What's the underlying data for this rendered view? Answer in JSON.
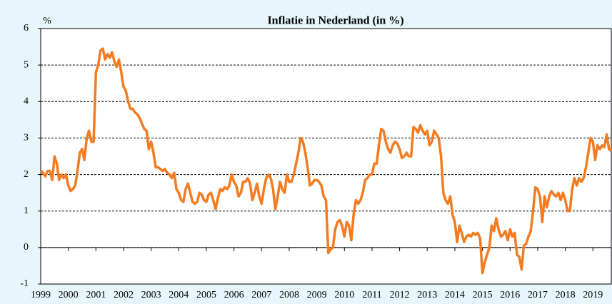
{
  "chart_data": {
    "type": "line",
    "title": "Inflatie in Nederland (in %)",
    "y_label": "%",
    "categories": [
      "1999",
      null,
      null,
      null,
      null,
      null,
      null,
      null,
      null,
      null,
      null,
      null,
      "2000",
      null,
      null,
      null,
      null,
      null,
      null,
      null,
      null,
      null,
      null,
      null,
      "2001",
      null,
      null,
      null,
      null,
      null,
      null,
      null,
      null,
      null,
      null,
      null,
      "2002",
      null,
      null,
      null,
      null,
      null,
      null,
      null,
      null,
      null,
      null,
      null,
      "2003",
      null,
      null,
      null,
      null,
      null,
      null,
      null,
      null,
      null,
      null,
      null,
      "2004",
      null,
      null,
      null,
      null,
      null,
      null,
      null,
      null,
      null,
      null,
      null,
      "2005",
      null,
      null,
      null,
      null,
      null,
      null,
      null,
      null,
      null,
      null,
      null,
      "2006",
      null,
      null,
      null,
      null,
      null,
      null,
      null,
      null,
      null,
      null,
      null,
      "2007",
      null,
      null,
      null,
      null,
      null,
      null,
      null,
      null,
      null,
      null,
      null,
      "2008",
      null,
      null,
      null,
      null,
      null,
      null,
      null,
      null,
      null,
      null,
      null,
      "2009",
      null,
      null,
      null,
      null,
      null,
      null,
      null,
      null,
      null,
      null,
      null,
      "2010",
      null,
      null,
      null,
      null,
      null,
      null,
      null,
      null,
      null,
      null,
      null,
      "2011",
      null,
      null,
      null,
      null,
      null,
      null,
      null,
      null,
      null,
      null,
      null,
      "2012",
      null,
      null,
      null,
      null,
      null,
      null,
      null,
      null,
      null,
      null,
      null,
      "2013",
      null,
      null,
      null,
      null,
      null,
      null,
      null,
      null,
      null,
      null,
      null,
      "2014",
      null,
      null,
      null,
      null,
      null,
      null,
      null,
      null,
      null,
      null,
      null,
      "2015",
      null,
      null,
      null,
      null,
      null,
      null,
      null,
      null,
      null,
      null,
      null,
      "2016",
      null,
      null,
      null,
      null,
      null,
      null,
      null,
      null,
      null,
      null,
      null,
      "2017",
      null,
      null,
      null,
      null,
      null,
      null,
      null,
      null,
      null,
      null,
      null,
      "2018",
      null,
      null,
      null,
      null,
      null,
      null,
      null,
      null,
      null,
      null,
      null,
      "2019",
      null,
      null,
      null,
      null,
      null,
      null,
      null,
      null
    ],
    "values": [
      2.1,
      2.05,
      1.95,
      2.1,
      2.1,
      1.85,
      2.5,
      2.3,
      1.85,
      2.0,
      1.9,
      2.0,
      1.7,
      1.55,
      1.6,
      1.7,
      2.1,
      2.6,
      2.7,
      2.4,
      3.0,
      3.2,
      2.9,
      2.9,
      4.8,
      5.0,
      5.4,
      5.45,
      5.15,
      5.3,
      5.2,
      5.35,
      5.1,
      4.95,
      5.15,
      4.8,
      4.4,
      4.3,
      4.0,
      3.8,
      3.8,
      3.7,
      3.65,
      3.55,
      3.4,
      3.25,
      3.2,
      2.7,
      2.9,
      2.6,
      2.2,
      2.2,
      2.15,
      2.1,
      2.15,
      2.05,
      2.0,
      1.9,
      2.05,
      1.6,
      1.5,
      1.3,
      1.25,
      1.6,
      1.75,
      1.5,
      1.25,
      1.2,
      1.25,
      1.5,
      1.45,
      1.3,
      1.25,
      1.45,
      1.5,
      1.3,
      1.05,
      1.35,
      1.6,
      1.55,
      1.65,
      1.6,
      1.7,
      2.0,
      1.8,
      1.7,
      1.4,
      1.5,
      1.8,
      1.8,
      1.9,
      1.75,
      1.3,
      1.5,
      1.75,
      1.4,
      1.2,
      1.6,
      1.9,
      2.0,
      1.9,
      1.6,
      1.05,
      1.4,
      1.8,
      1.6,
      1.5,
      2.0,
      1.8,
      1.8,
      2.0,
      2.3,
      2.6,
      3.0,
      2.9,
      2.6,
      2.2,
      1.7,
      1.75,
      1.85,
      1.85,
      1.8,
      1.7,
      1.4,
      1.3,
      -0.15,
      -0.05,
      0.0,
      0.5,
      0.7,
      0.75,
      0.6,
      0.3,
      0.7,
      0.6,
      0.2,
      0.9,
      1.3,
      1.2,
      1.3,
      1.5,
      1.85,
      1.9,
      2.0,
      2.0,
      2.3,
      2.3,
      2.8,
      3.25,
      3.2,
      2.9,
      2.7,
      2.6,
      2.8,
      2.9,
      2.85,
      2.7,
      2.45,
      2.5,
      2.6,
      2.5,
      2.5,
      3.3,
      3.25,
      3.15,
      3.35,
      3.2,
      3.1,
      3.2,
      2.8,
      2.9,
      3.2,
      3.1,
      3.0,
      2.5,
      1.5,
      1.3,
      1.2,
      1.4,
      0.9,
      0.7,
      0.15,
      0.6,
      0.4,
      0.15,
      0.3,
      0.35,
      0.3,
      0.4,
      0.35,
      0.4,
      0.25,
      -0.7,
      -0.4,
      -0.2,
      0.0,
      0.6,
      0.45,
      0.8,
      0.5,
      0.3,
      0.35,
      0.45,
      0.2,
      0.5,
      0.3,
      0.4,
      -0.2,
      -0.25,
      -0.6,
      0.05,
      0.1,
      0.3,
      0.45,
      1.0,
      1.65,
      1.6,
      1.4,
      0.7,
      1.4,
      1.1,
      1.4,
      1.55,
      1.45,
      1.4,
      1.5,
      1.3,
      1.5,
      1.3,
      1.0,
      1.0,
      1.6,
      1.9,
      1.7,
      1.9,
      1.8,
      1.9,
      2.2,
      2.6,
      3.0,
      2.9,
      2.4,
      2.8,
      2.7,
      2.8,
      2.75,
      3.1,
      2.7,
      2.65
    ],
    "color": "#f47b20",
    "ylim": [
      -1,
      6
    ],
    "yticks": [
      -1,
      0,
      1,
      2,
      3,
      4,
      5,
      6
    ],
    "grid": true
  }
}
